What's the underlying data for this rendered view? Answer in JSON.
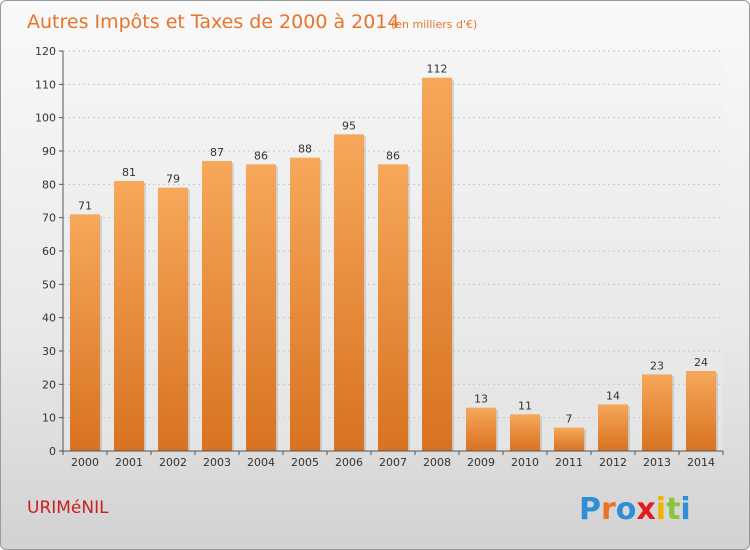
{
  "colors": {
    "bar_top": "#f6a85a",
    "bar_bottom": "#d87220",
    "title": "#e8742a",
    "town": "#c8201f",
    "logo": [
      "#2f8fd6",
      "#e8742a",
      "#2f8fd6",
      "#e21b1b",
      "#f0b400",
      "#8ac43f"
    ]
  },
  "header": {
    "title": "Autres Impôts et Taxes de 2000 à 2014",
    "subtitle": "(en milliers d'€)"
  },
  "footer": {
    "town": "URIMéNIL",
    "logo_text": "Proxiti"
  },
  "chart_data": {
    "type": "bar",
    "title": "Autres Impôts et Taxes de 2000 à 2014",
    "subtitle": "(en milliers d'€)",
    "categories": [
      "2000",
      "2001",
      "2002",
      "2003",
      "2004",
      "2005",
      "2006",
      "2007",
      "2008",
      "2009",
      "2010",
      "2011",
      "2012",
      "2013",
      "2014"
    ],
    "values": [
      71,
      81,
      79,
      87,
      86,
      88,
      95,
      86,
      112,
      13,
      11,
      7,
      14,
      23,
      24
    ],
    "ylim": [
      0,
      120
    ],
    "yticks": [
      0,
      10,
      20,
      30,
      40,
      50,
      60,
      70,
      80,
      90,
      100,
      110,
      120
    ],
    "grid": true,
    "legend": "none"
  }
}
